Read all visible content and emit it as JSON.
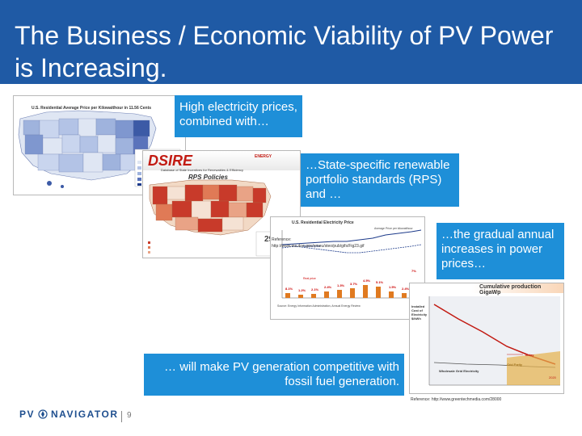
{
  "slide": {
    "title": "The Business / Economic Viability of PV Power is Increasing.",
    "title_bar_color": "#1f5aa5",
    "callout_color": "#1e8fd8"
  },
  "callouts": {
    "c1": "High electricity prices, combined with…",
    "c2": "…State-specific renewable portfolio standards (RPS) and …",
    "c3": "…the gradual annual increases in power prices…",
    "c4": "… will make PV generation competitive with fossil fuel generation."
  },
  "us_map": {
    "title": "U.S. Residential Average Price per Kilowatthour in 11.56 Cents",
    "legend": [
      "7.30/52",
      "8.50/52",
      "9.50/52",
      "10.50/52",
      "15.50/52"
    ]
  },
  "dsire": {
    "logo": "DSIRE",
    "subtitle": "Database of State Incentives for Renewables & Efficiency",
    "rps_title": "RPS Policies",
    "badge": "29 st",
    "sponsor": "ENERGY"
  },
  "price_chart": {
    "title": "U.S. Residential Electricity Price",
    "legend": "Average Price per kilowatthour",
    "series_labels": [
      "Nominal price",
      "Real price"
    ],
    "bar_labels": [
      "8.1%",
      "1.2%",
      "2.1%",
      "2.4%",
      "1.3%",
      "3.7%",
      "4.5%",
      "5.1%",
      "1.5%",
      "2.4%",
      "7%"
    ],
    "source": "Source: Energy Information Administration, Annual Energy Review"
  },
  "cumulative": {
    "header": "Cumulative production GigaWp",
    "y_label": "Installed Cost of Electricity $/kWh",
    "labels": [
      "Today",
      "Grid Parity",
      "Wholesale Grid Electricity",
      "2020"
    ]
  },
  "references": {
    "ref1_label": "Reference:",
    "ref1_url": "http://www.eia.doe.gov/emeu/steo/pub/gifs/Fig23.gif",
    "ref2": "Reference: http://www.greentechmedia.com/28000"
  },
  "footer": {
    "brand_left": "PV",
    "brand_right": "NAVIGATOR",
    "page_number": "9"
  }
}
